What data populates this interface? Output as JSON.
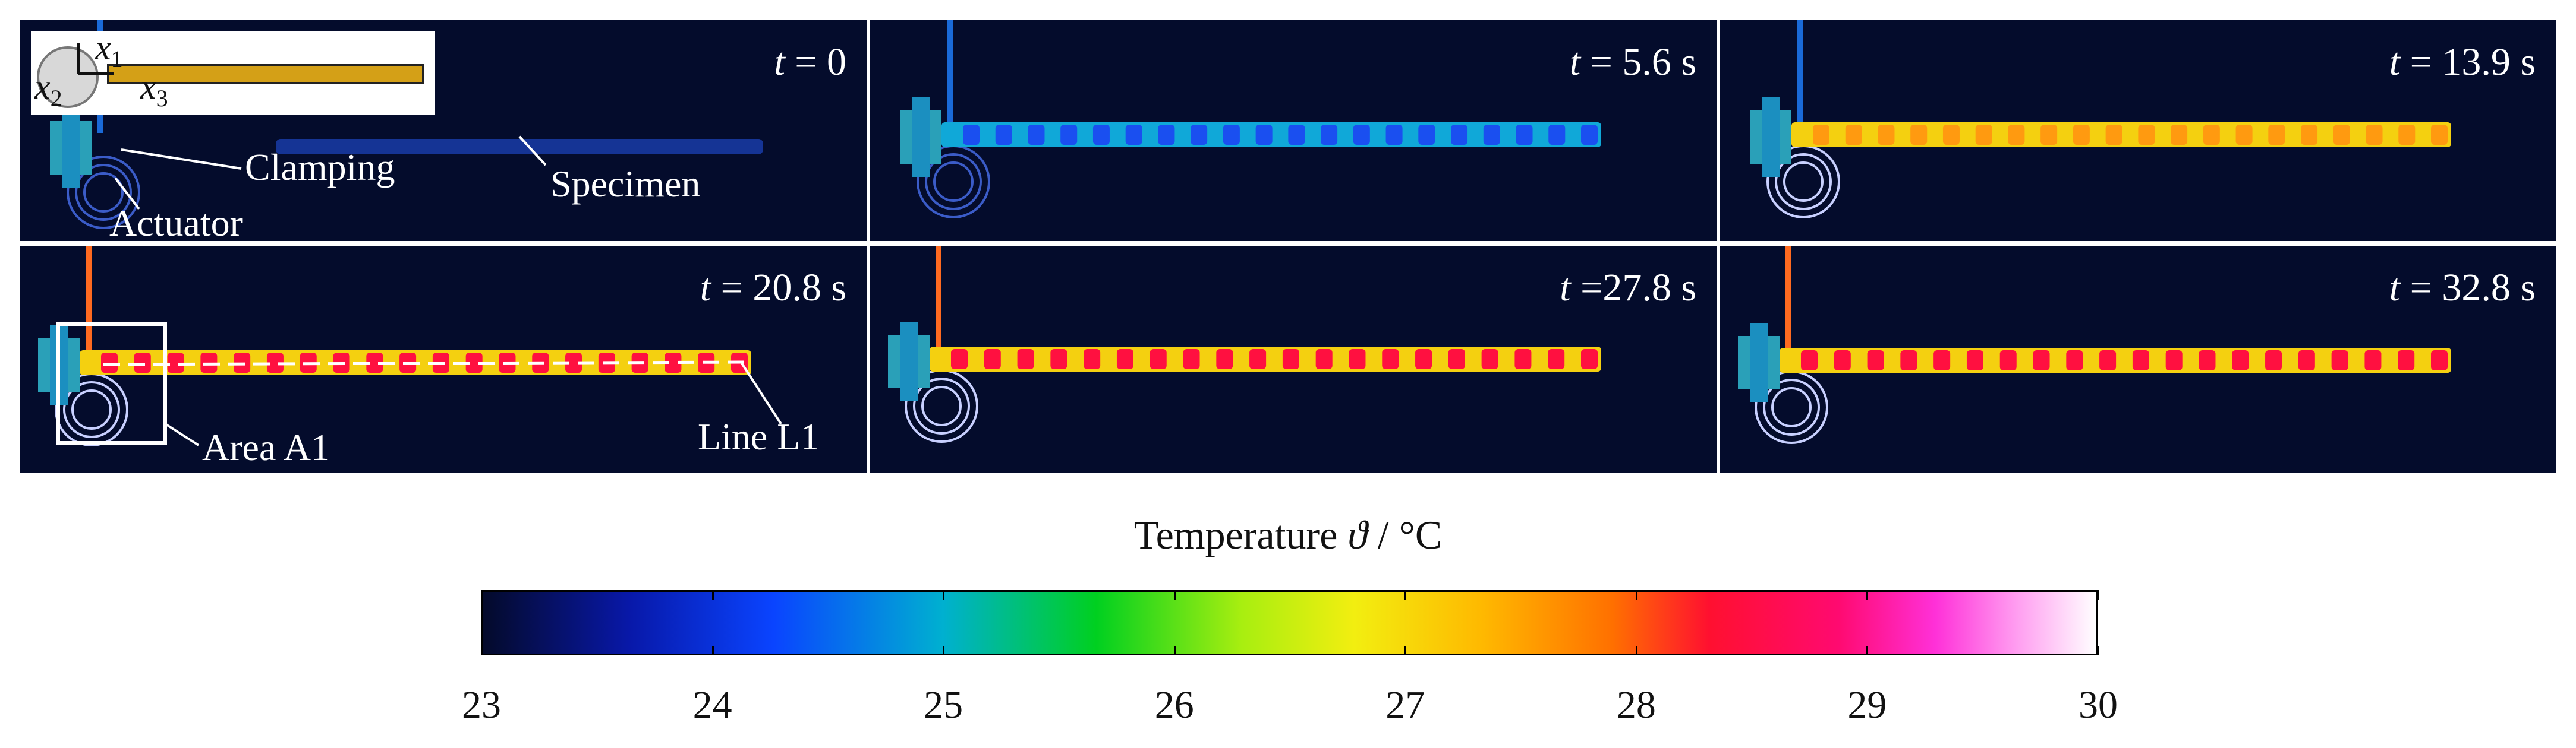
{
  "panels": [
    {
      "time": "= 0",
      "glow": 0.0
    },
    {
      "time": "= 5.6 s",
      "glow": 0.35
    },
    {
      "time": "= 13.9 s",
      "glow": 0.6
    },
    {
      "time": "= 20.8 s",
      "glow": 0.78
    },
    {
      "time": "=27.8 s",
      "glow": 0.92
    },
    {
      "time": "= 32.8 s",
      "glow": 1.0
    }
  ],
  "time_symbol": "t",
  "annotations": {
    "clamping": "Clamping",
    "specimen": "Specimen",
    "actuator": "Actuator",
    "area": "Area A1",
    "line": "Line L1"
  },
  "inset_axes": {
    "x1": "x",
    "x1_sub": "1",
    "x2": "x",
    "x2_sub": "2",
    "x3": "x",
    "x3_sub": "3"
  },
  "colorbar": {
    "title_prefix": "Temperature ",
    "title_symbol": "ϑ",
    "title_unit": " / °C",
    "ticks": [
      "23",
      "24",
      "25",
      "26",
      "27",
      "28",
      "29",
      "30"
    ],
    "min": 23,
    "max": 30
  },
  "colors": {
    "background": "#040c2c",
    "specimen_hot": "#ff1040",
    "specimen_warm": "#f4d010"
  }
}
